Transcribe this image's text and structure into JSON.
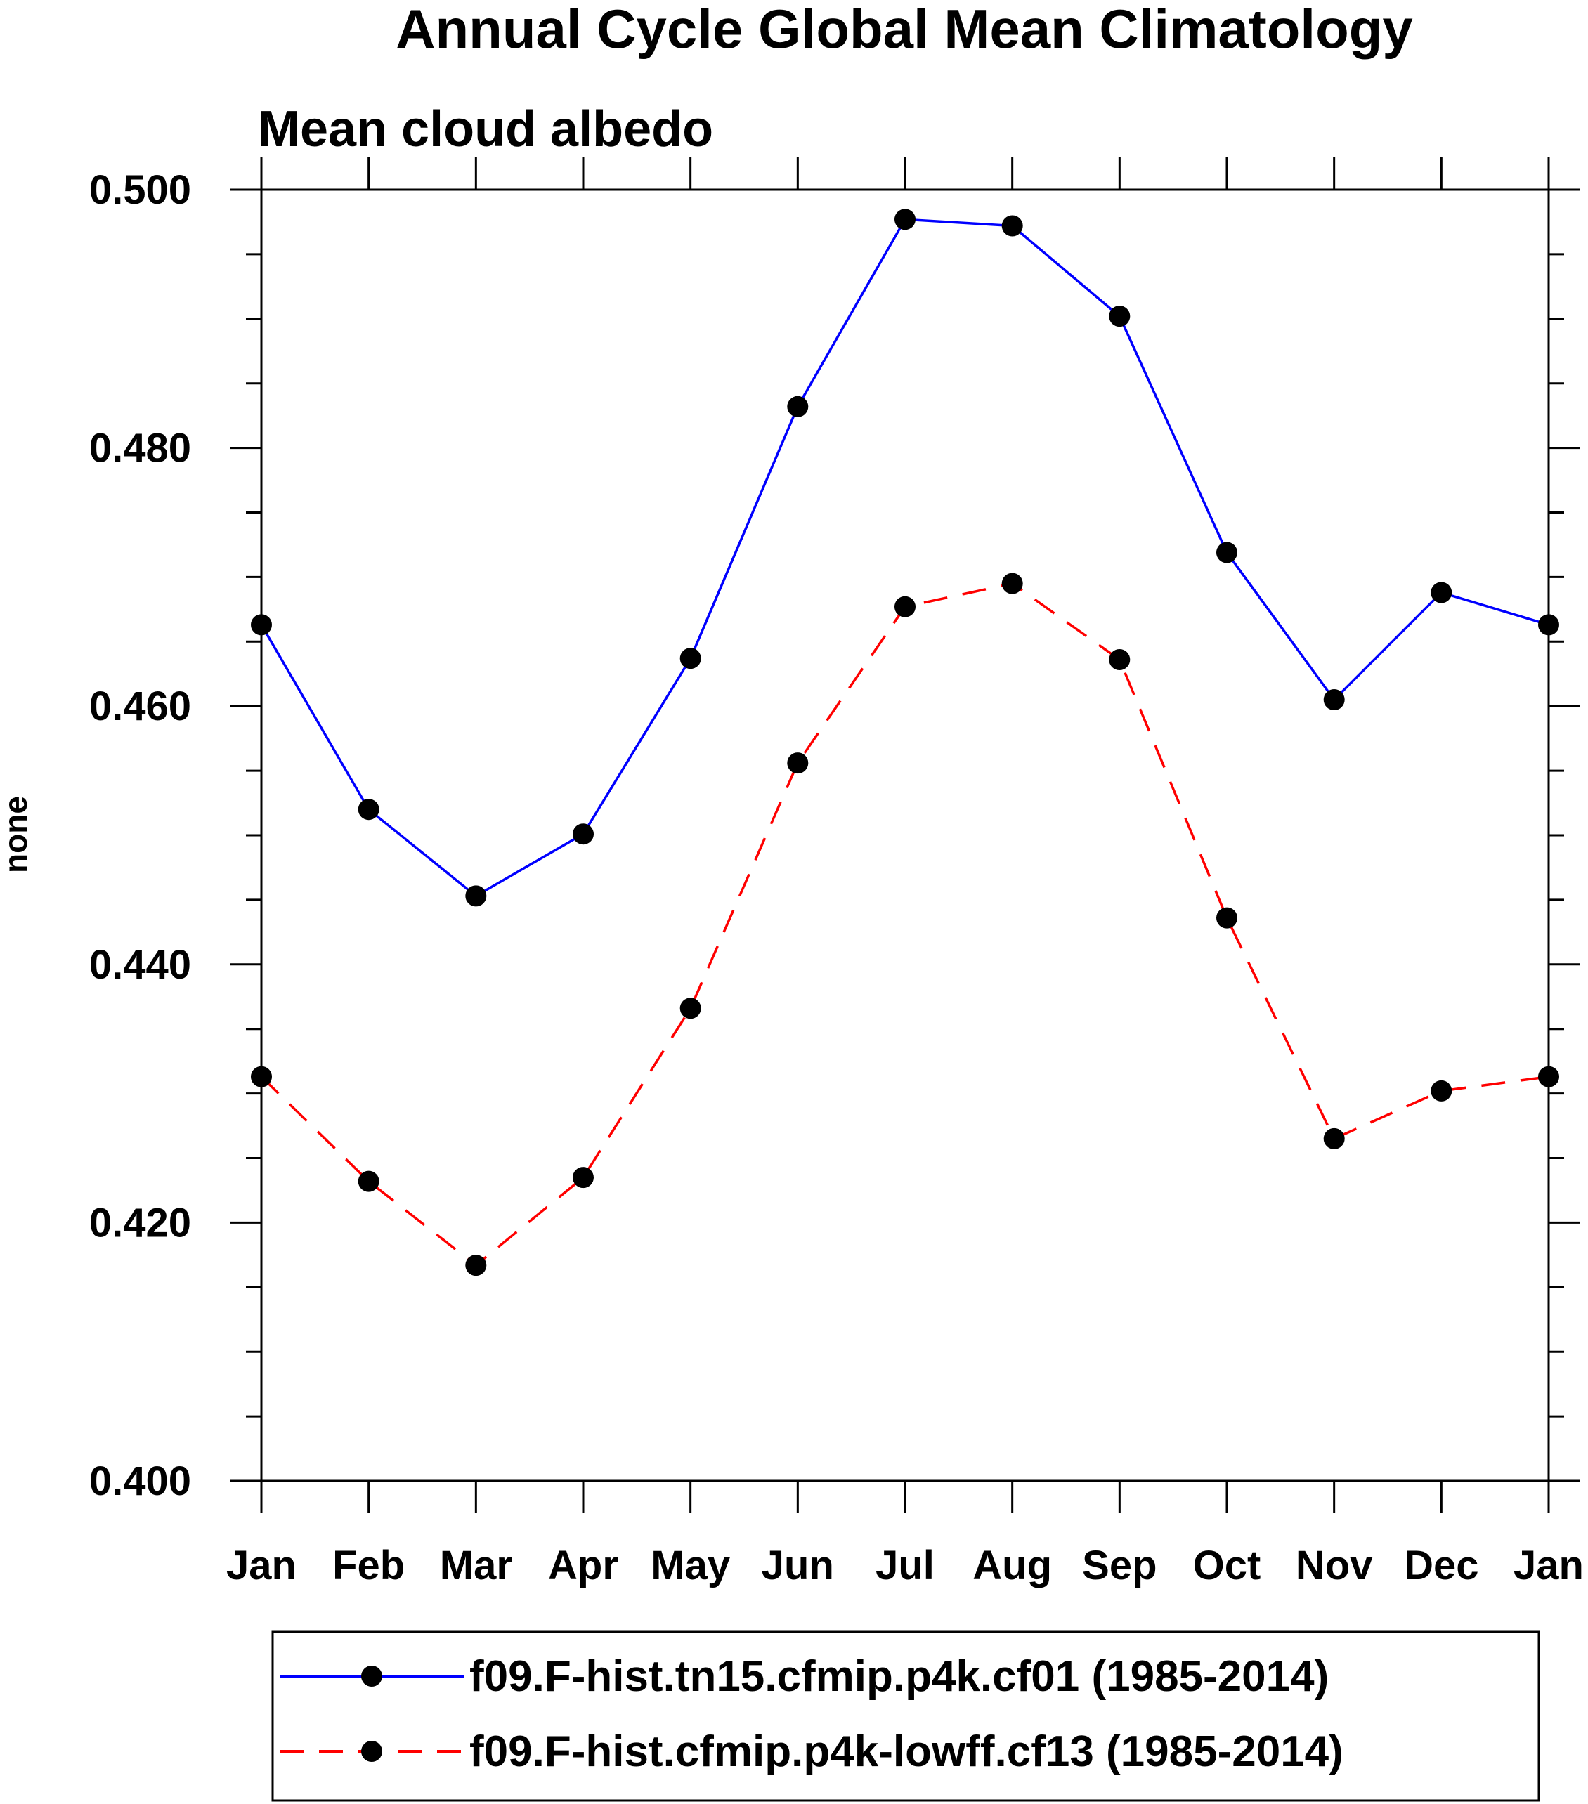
{
  "chart_data": {
    "type": "line",
    "title": "Annual Cycle Global Mean Climatology",
    "subtitle": "Mean cloud albedo",
    "xlabel": "",
    "ylabel": "none",
    "categories": [
      "Jan",
      "Feb",
      "Mar",
      "Apr",
      "May",
      "Jun",
      "Jul",
      "Aug",
      "Sep",
      "Oct",
      "Nov",
      "Dec",
      "Jan"
    ],
    "ylim": [
      0.4,
      0.5
    ],
    "yticks": [
      "0.400",
      "0.420",
      "0.440",
      "0.460",
      "0.480",
      "0.500"
    ],
    "ytick_values": [
      0.4,
      0.42,
      0.44,
      0.46,
      0.48,
      0.5
    ],
    "grid": false,
    "legend_position": "bottom",
    "series": [
      {
        "name": "f09.F-hist.tn15.cfmip.p4k.cf01 (1985-2014)",
        "color": "#0000ff",
        "line_style": "solid",
        "marker": "filled-circle",
        "values": [
          0.4663,
          0.452,
          0.4453,
          0.4501,
          0.4637,
          0.4832,
          0.4977,
          0.4972,
          0.4902,
          0.4719,
          0.4605,
          0.4688,
          0.4663
        ]
      },
      {
        "name": "f09.F-hist.cfmip.p4k-lowff.cf13 (1985-2014)",
        "color": "#ff0000",
        "line_style": "dashed",
        "marker": "filled-circle",
        "values": [
          0.4313,
          0.4232,
          0.4167,
          0.4235,
          0.4366,
          0.4556,
          0.4677,
          0.4695,
          0.4636,
          0.4436,
          0.4265,
          0.4302,
          0.4313
        ]
      }
    ]
  }
}
